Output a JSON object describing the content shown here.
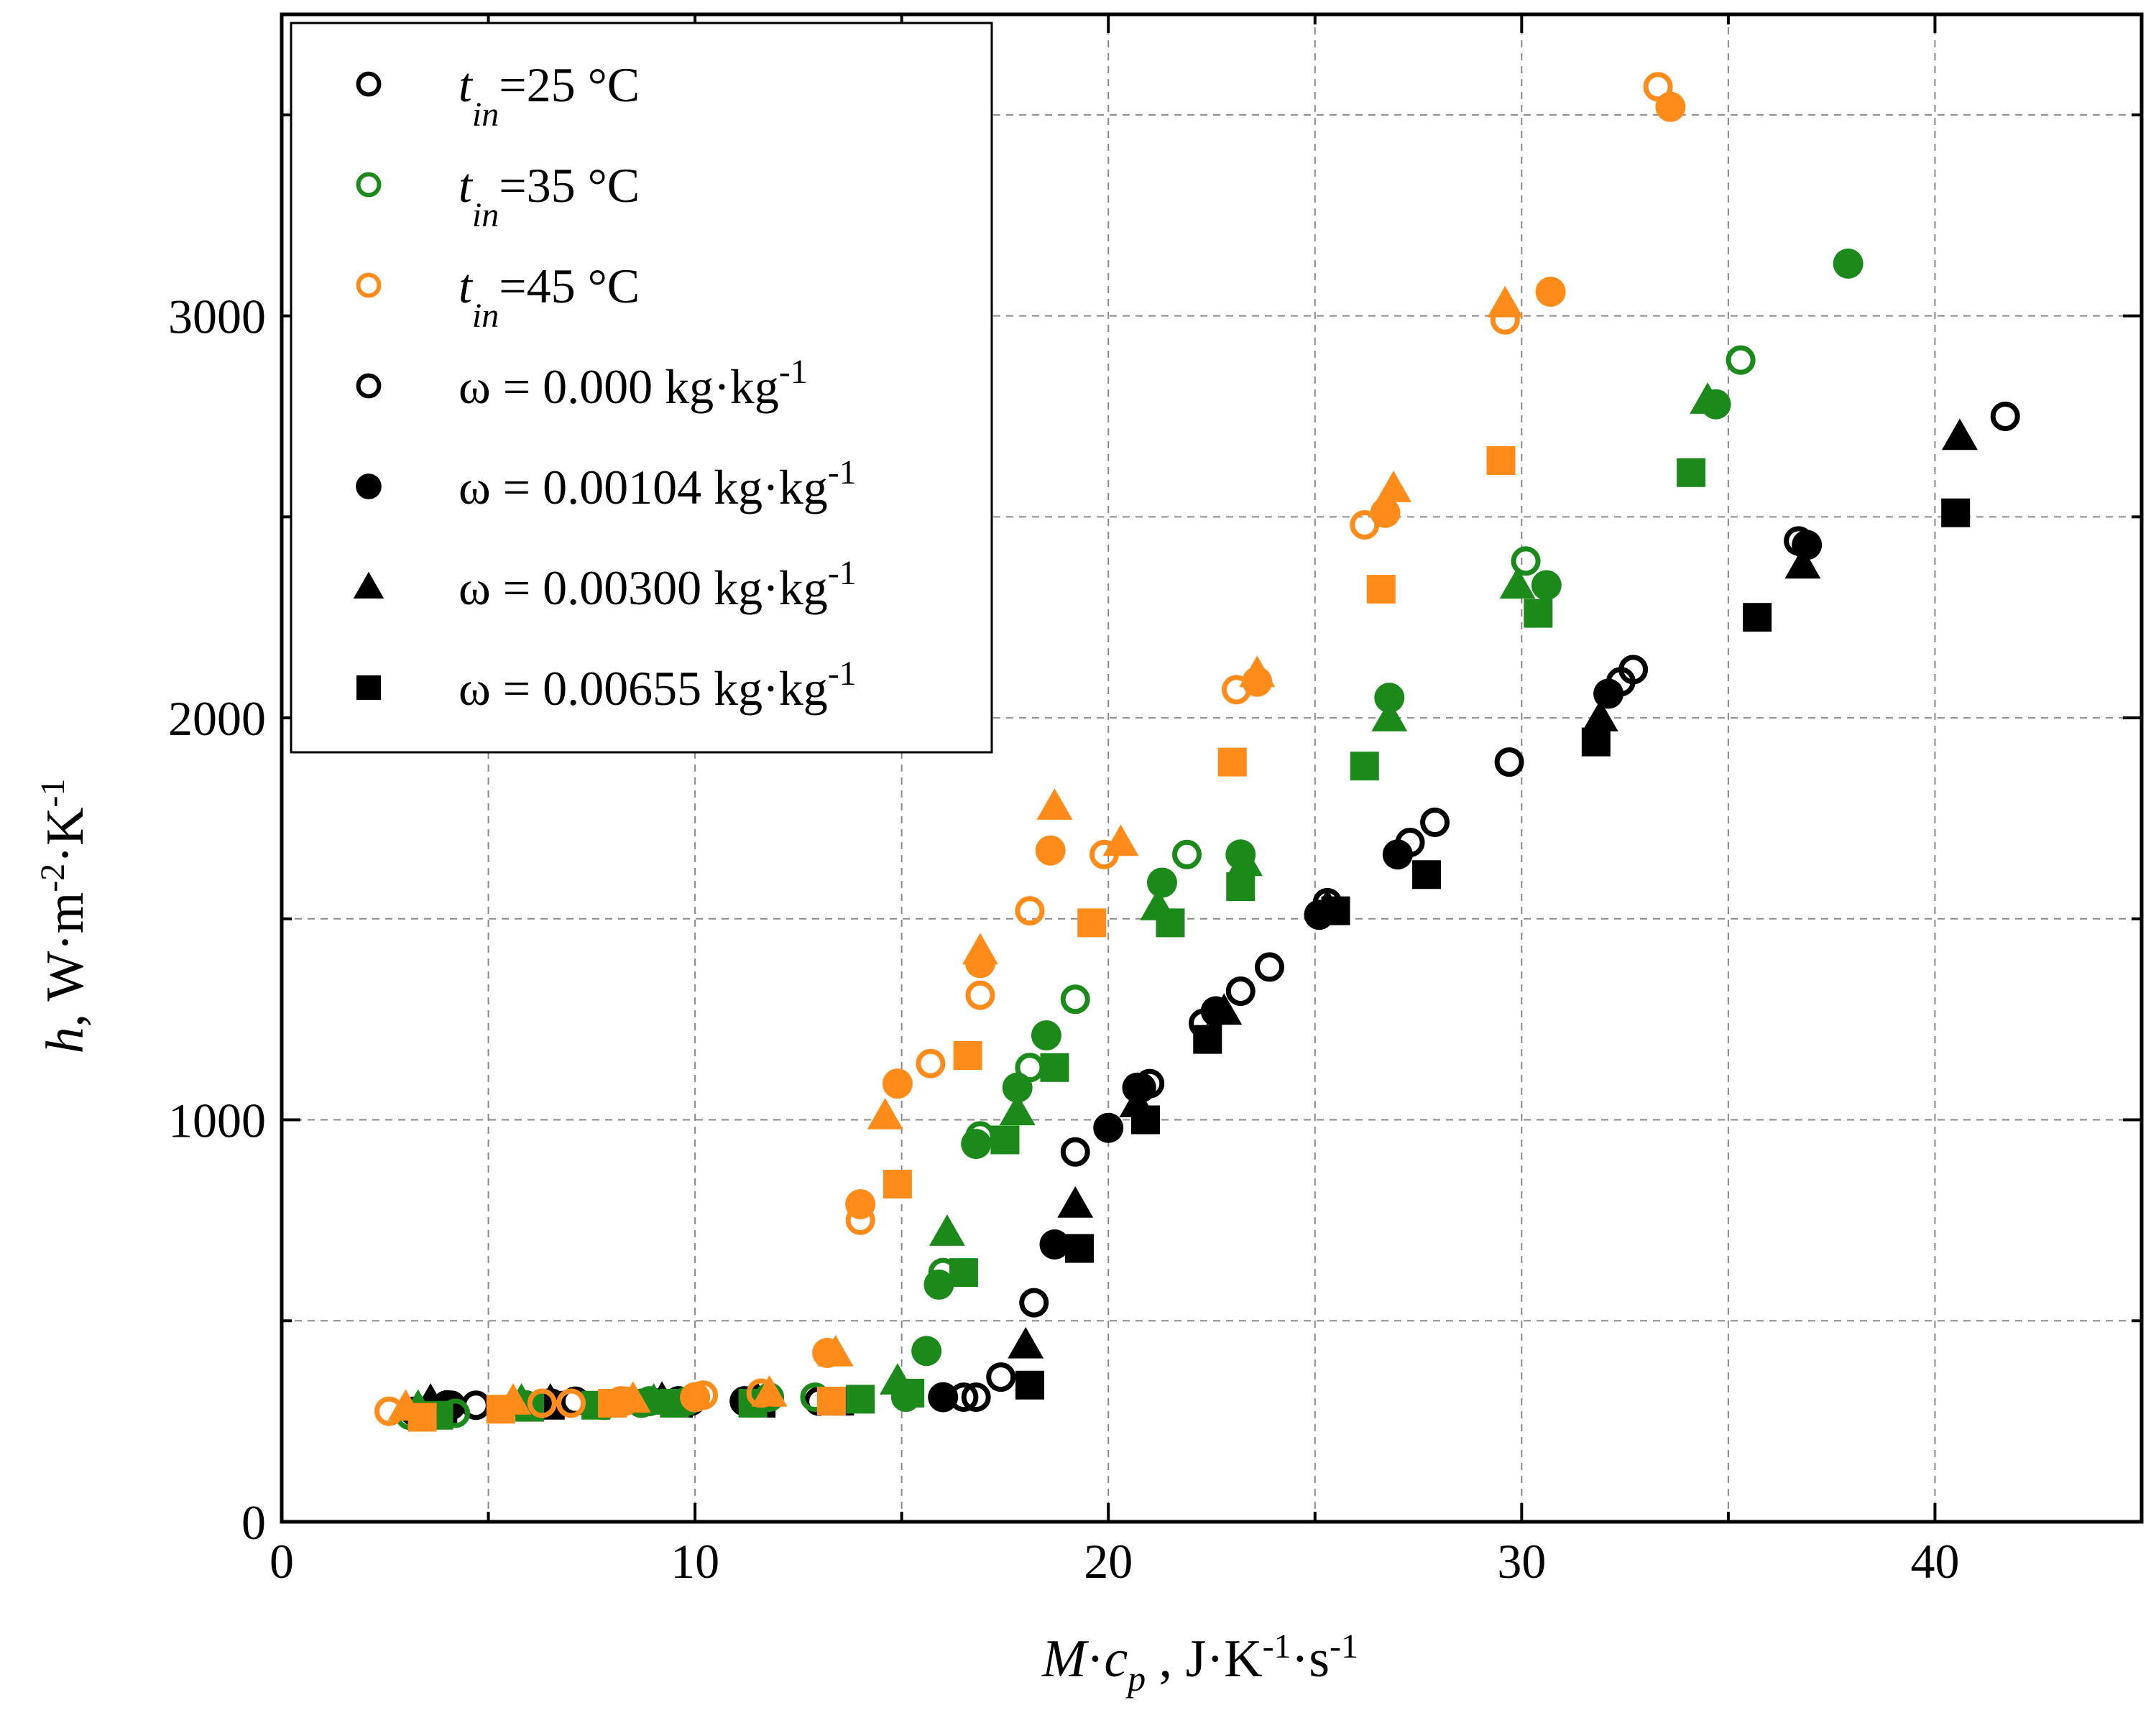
{
  "colors": {
    "t25": "#000000",
    "t35": "#1b8a1b",
    "t45": "#ff8c1a",
    "grid": "#8a8a8a",
    "axis": "#000000"
  },
  "legend": {
    "items": [
      {
        "sym": "t",
        "sub": "in",
        "rest": "=25 °C",
        "marker": "open-circle",
        "color": "#000000"
      },
      {
        "sym": "t",
        "sub": "in",
        "rest": "=35 °C",
        "marker": "open-circle",
        "color": "#1b8a1b"
      },
      {
        "sym": "t",
        "sub": "in",
        "rest": "=45 °C",
        "marker": "open-circle",
        "color": "#ff8c1a"
      },
      {
        "text": "ω = 0.000 kg·kg",
        "sup": "-1",
        "marker": "open-circle",
        "color": "#000000"
      },
      {
        "text": "ω = 0.00104 kg·kg",
        "sup": "-1",
        "marker": "filled-circle",
        "color": "#000000"
      },
      {
        "text": "ω = 0.00300 kg·kg",
        "sup": "-1",
        "marker": "triangle",
        "color": "#000000"
      },
      {
        "text": "ω = 0.00655 kg·kg",
        "sup": "-1",
        "marker": "square",
        "color": "#000000"
      }
    ]
  },
  "chart_data": {
    "type": "scatter",
    "title": "",
    "xlabel": "M·cp , J·K-1·s-1",
    "ylabel": "h, W·m-2·K-1",
    "xlim": [
      0,
      45
    ],
    "ylim": [
      0,
      3750
    ],
    "xticks": [
      0,
      10,
      20,
      30,
      40
    ],
    "yticks": [
      0,
      1000,
      2000,
      3000
    ],
    "grid": true,
    "legend_position": "top-left",
    "series": [
      {
        "name": "tin=25 °C, ω = 0.000",
        "temperature": "25",
        "omega": "0.000",
        "marker": "open-circle",
        "points": [
          [
            3.2,
            275
          ],
          [
            4.1,
            290
          ],
          [
            4.7,
            290
          ],
          [
            7.1,
            300
          ],
          [
            9.9,
            300
          ],
          [
            13.0,
            300
          ],
          [
            16.5,
            310
          ],
          [
            16.8,
            310
          ],
          [
            17.4,
            360
          ],
          [
            18.2,
            545
          ],
          [
            19.2,
            920
          ],
          [
            20.8,
            1080
          ],
          [
            21.0,
            1090
          ],
          [
            22.3,
            1240
          ],
          [
            23.2,
            1320
          ],
          [
            23.9,
            1380
          ],
          [
            25.3,
            1540
          ],
          [
            27.3,
            1690
          ],
          [
            27.9,
            1740
          ],
          [
            29.7,
            1890
          ],
          [
            32.4,
            2090
          ],
          [
            32.7,
            2120
          ],
          [
            36.7,
            2440
          ],
          [
            41.7,
            2750
          ]
        ]
      },
      {
        "name": "tin=25 °C, ω = 0.00104",
        "temperature": "25",
        "omega": "0.00104",
        "marker": "filled-circle",
        "points": [
          [
            4.0,
            290
          ],
          [
            6.5,
            295
          ],
          [
            9.6,
            300
          ],
          [
            11.2,
            300
          ],
          [
            16.0,
            310
          ],
          [
            18.7,
            690
          ],
          [
            20.0,
            980
          ],
          [
            20.7,
            1080
          ],
          [
            22.6,
            1270
          ],
          [
            25.1,
            1510
          ],
          [
            27.0,
            1660
          ],
          [
            32.1,
            2060
          ],
          [
            36.9,
            2430
          ]
        ]
      },
      {
        "name": "tin=25 °C, ω = 0.00300",
        "temperature": "25",
        "omega": "0.00300",
        "marker": "triangle",
        "points": [
          [
            3.6,
            300
          ],
          [
            6.5,
            300
          ],
          [
            9.2,
            305
          ],
          [
            11.5,
            305
          ],
          [
            18.0,
            440
          ],
          [
            19.2,
            790
          ],
          [
            20.7,
            1040
          ],
          [
            22.8,
            1270
          ],
          [
            25.3,
            1530
          ],
          [
            31.9,
            2000
          ],
          [
            36.8,
            2380
          ],
          [
            40.6,
            2700
          ]
        ]
      },
      {
        "name": "tin=25 °C, ω = 0.00655",
        "temperature": "25",
        "omega": "0.00655",
        "marker": "square",
        "points": [
          [
            3.9,
            280
          ],
          [
            6.5,
            290
          ],
          [
            9.6,
            295
          ],
          [
            11.6,
            295
          ],
          [
            13.5,
            300
          ],
          [
            18.1,
            340
          ],
          [
            19.3,
            680
          ],
          [
            20.9,
            1000
          ],
          [
            22.4,
            1200
          ],
          [
            25.5,
            1520
          ],
          [
            27.7,
            1610
          ],
          [
            31.8,
            1940
          ],
          [
            35.7,
            2250
          ],
          [
            40.5,
            2510
          ]
        ]
      },
      {
        "name": "tin=35 °C, ω = 0.000",
        "temperature": "35",
        "omega": "0.000",
        "marker": "open-circle",
        "points": [
          [
            3.1,
            265
          ],
          [
            4.2,
            270
          ],
          [
            7.8,
            290
          ],
          [
            8.7,
            295
          ],
          [
            9.8,
            300
          ],
          [
            11.8,
            310
          ],
          [
            12.9,
            310
          ],
          [
            15.1,
            310
          ],
          [
            16.0,
            620
          ],
          [
            16.9,
            960
          ],
          [
            18.1,
            1130
          ],
          [
            19.2,
            1300
          ],
          [
            21.9,
            1660
          ],
          [
            30.1,
            2390
          ],
          [
            35.3,
            2890
          ]
        ]
      },
      {
        "name": "tin=35 °C, ω = 0.00104",
        "temperature": "35",
        "omega": "0.00104",
        "marker": "filled-circle",
        "points": [
          [
            5.9,
            290
          ],
          [
            8.9,
            300
          ],
          [
            15.6,
            425
          ],
          [
            15.9,
            590
          ],
          [
            16.8,
            940
          ],
          [
            17.8,
            1080
          ],
          [
            18.5,
            1210
          ],
          [
            21.3,
            1590
          ],
          [
            23.2,
            1660
          ],
          [
            26.8,
            2050
          ],
          [
            30.6,
            2330
          ],
          [
            34.7,
            2780
          ],
          [
            37.9,
            3130
          ]
        ]
      },
      {
        "name": "tin=35 °C, ω = 0.00300",
        "temperature": "35",
        "omega": "0.00300",
        "marker": "triangle",
        "points": [
          [
            3.3,
            285
          ],
          [
            5.8,
            300
          ],
          [
            9.0,
            300
          ],
          [
            14.9,
            350
          ],
          [
            16.1,
            720
          ],
          [
            17.8,
            1020
          ],
          [
            21.2,
            1530
          ],
          [
            23.3,
            1640
          ],
          [
            26.8,
            2000
          ],
          [
            29.9,
            2330
          ],
          [
            34.5,
            2790
          ]
        ]
      },
      {
        "name": "tin=35 °C, ω = 0.00655",
        "temperature": "35",
        "omega": "0.00655",
        "marker": "square",
        "points": [
          [
            3.8,
            265
          ],
          [
            6.0,
            285
          ],
          [
            7.6,
            290
          ],
          [
            9.5,
            295
          ],
          [
            11.4,
            295
          ],
          [
            14.0,
            305
          ],
          [
            15.2,
            320
          ],
          [
            16.5,
            620
          ],
          [
            17.5,
            950
          ],
          [
            18.7,
            1130
          ],
          [
            21.5,
            1490
          ],
          [
            23.2,
            1580
          ],
          [
            26.2,
            1880
          ],
          [
            30.4,
            2260
          ],
          [
            34.1,
            2610
          ]
        ]
      },
      {
        "name": "tin=45 °C, ω = 0.000",
        "temperature": "45",
        "omega": "0.000",
        "marker": "open-circle",
        "points": [
          [
            2.6,
            275
          ],
          [
            6.3,
            295
          ],
          [
            7.0,
            295
          ],
          [
            8.3,
            300
          ],
          [
            10.2,
            315
          ],
          [
            11.6,
            320
          ],
          [
            14.0,
            750
          ],
          [
            15.7,
            1140
          ],
          [
            16.9,
            1310
          ],
          [
            18.1,
            1520
          ],
          [
            19.9,
            1660
          ],
          [
            23.1,
            2070
          ],
          [
            26.2,
            2480
          ],
          [
            29.6,
            2990
          ],
          [
            33.3,
            3570
          ]
        ]
      },
      {
        "name": "tin=45 °C, ω = 0.00104",
        "temperature": "45",
        "omega": "0.00104",
        "marker": "filled-circle",
        "points": [
          [
            8.2,
            300
          ],
          [
            10.0,
            310
          ],
          [
            13.2,
            420
          ],
          [
            14.0,
            790
          ],
          [
            14.9,
            1090
          ],
          [
            16.9,
            1390
          ],
          [
            18.6,
            1670
          ],
          [
            23.6,
            2090
          ],
          [
            26.7,
            2510
          ],
          [
            30.7,
            3060
          ],
          [
            33.6,
            3520
          ]
        ]
      },
      {
        "name": "tin=45 °C, ω = 0.00300",
        "temperature": "45",
        "omega": "0.00300",
        "marker": "triangle",
        "points": [
          [
            3.0,
            285
          ],
          [
            5.6,
            300
          ],
          [
            8.5,
            305
          ],
          [
            11.8,
            320
          ],
          [
            13.4,
            420
          ],
          [
            14.6,
            1010
          ],
          [
            16.9,
            1420
          ],
          [
            18.7,
            1780
          ],
          [
            20.3,
            1690
          ],
          [
            23.6,
            2110
          ],
          [
            26.9,
            2570
          ],
          [
            29.6,
            3030
          ]
        ]
      },
      {
        "name": "tin=45 °C, ω = 0.00655",
        "temperature": "45",
        "omega": "0.00655",
        "marker": "square",
        "points": [
          [
            3.4,
            260
          ],
          [
            5.3,
            280
          ],
          [
            8.0,
            295
          ],
          [
            13.3,
            300
          ],
          [
            14.9,
            840
          ],
          [
            16.6,
            1160
          ],
          [
            19.6,
            1490
          ],
          [
            23.0,
            1890
          ],
          [
            26.6,
            2320
          ],
          [
            29.5,
            2640
          ]
        ]
      }
    ]
  }
}
